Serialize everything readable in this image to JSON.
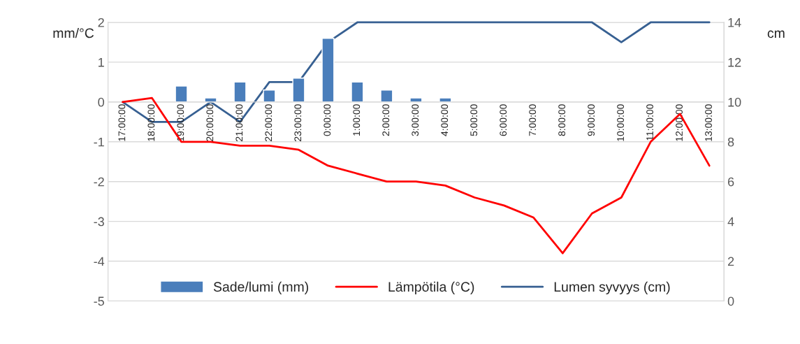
{
  "chart_data": {
    "type": "bar",
    "categories": [
      "17:00:00",
      "18:00:00",
      "19:00:00",
      "20:00:00",
      "21:00:00",
      "22:00:00",
      "23:00:00",
      "0:00:00",
      "1:00:00",
      "2:00:00",
      "3:00:00",
      "4:00:00",
      "5:00:00",
      "6:00:00",
      "7:00:00",
      "8:00:00",
      "9:00:00",
      "10:00:00",
      "11:00:00",
      "12:00:00",
      "13:00:00"
    ],
    "ylabel": "mm/°C",
    "y2label": "cm",
    "ylim": [
      -5,
      2
    ],
    "yticks": [
      -5,
      -4,
      -3,
      -2,
      -1,
      0,
      1,
      2
    ],
    "y2lim": [
      0,
      14
    ],
    "y2ticks": [
      0,
      2,
      4,
      6,
      8,
      10,
      12,
      14
    ],
    "grid": "y",
    "legend": "bottom",
    "series": [
      {
        "name": "Sade/lumi (mm)",
        "color": "#4a7ebb",
        "values": [
          null,
          null,
          0.4,
          0.1,
          0.5,
          0.3,
          0.6,
          1.6,
          0.5,
          0.3,
          0.1,
          0.1,
          null,
          null,
          null,
          null,
          null,
          null,
          null,
          null,
          null
        ]
      },
      {
        "name": "Lämpötila (°C)",
        "type": "line",
        "color": "#ff0000",
        "values": [
          0,
          0.1,
          -1,
          -1,
          -1.1,
          -1.1,
          -1.2,
          -1.6,
          -1.8,
          -2,
          -2,
          -2.1,
          -2.4,
          -2.6,
          -2.9,
          -3.8,
          -2.8,
          -2.4,
          -1,
          -0.3,
          -1.6
        ]
      },
      {
        "name": "Lumen syvyys (cm)",
        "type": "line",
        "axis": "y2",
        "color": "#376092",
        "values": [
          10,
          9,
          9,
          10,
          9,
          11,
          11,
          13,
          14,
          14,
          14,
          14,
          14,
          14,
          14,
          14,
          14,
          13,
          14,
          14,
          14
        ]
      }
    ]
  }
}
